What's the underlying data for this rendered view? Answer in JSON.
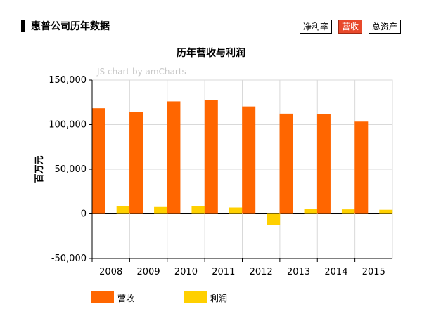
{
  "header": {
    "title": "惠普公司历年数据",
    "tabs": [
      {
        "label": "净利率",
        "active": false
      },
      {
        "label": "营收",
        "active": true
      },
      {
        "label": "总资产",
        "active": false
      }
    ]
  },
  "watermark": "JS chart by amCharts",
  "colors": {
    "revenue": "#ff6600",
    "profit": "#ffd000",
    "tab_active": "#e8492b"
  },
  "chart_data": {
    "type": "bar",
    "title": "历年营收与利润",
    "ylabel": "百万元",
    "xlabel": "",
    "ylim": [
      -50000,
      150000
    ],
    "yticks": [
      -50000,
      0,
      50000,
      100000,
      150000
    ],
    "ytick_labels": [
      "-50,000",
      "0",
      "50,000",
      "100,000",
      "150,000"
    ],
    "grid": true,
    "legend_position": "bottom-left",
    "categories": [
      "2008",
      "2009",
      "2010",
      "2011",
      "2012",
      "2013",
      "2014",
      "2015"
    ],
    "series": [
      {
        "name": "营收",
        "values": [
          118364,
          114552,
          126033,
          127245,
          120357,
          112298,
          111454,
          103355
        ]
      },
      {
        "name": "利润",
        "values": [
          8329,
          7660,
          8761,
          7074,
          -12650,
          5113,
          5013,
          4554
        ]
      }
    ]
  }
}
